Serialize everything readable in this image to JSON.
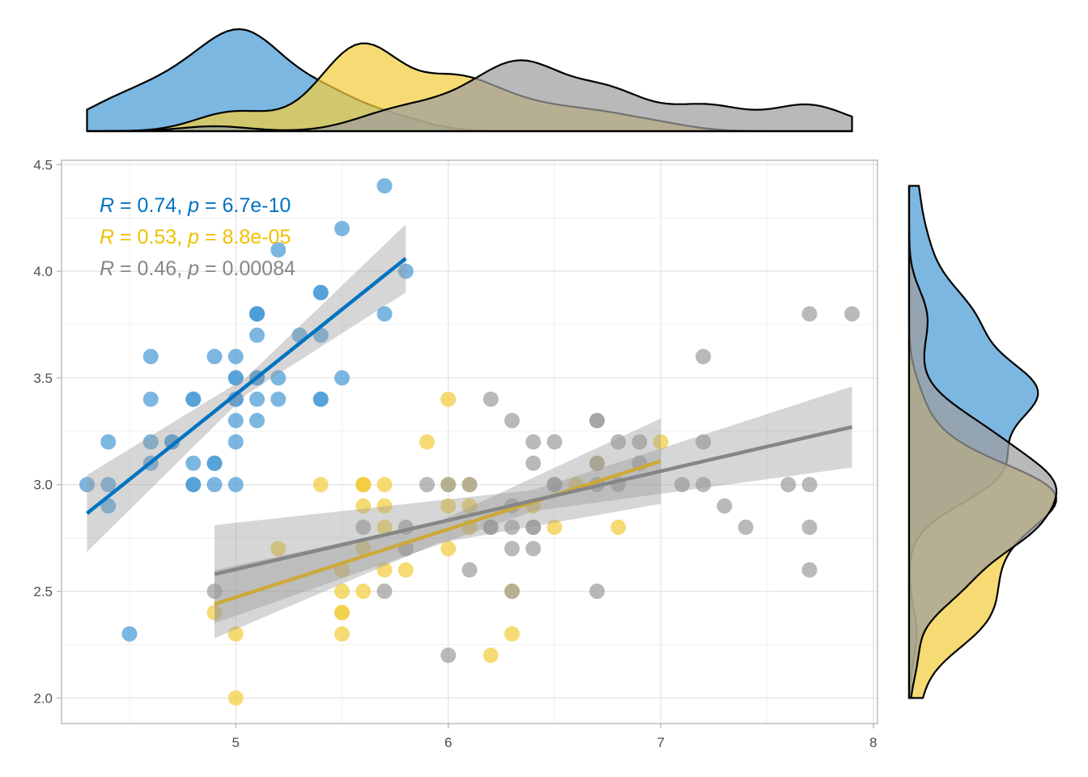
{
  "chart_data": {
    "type": "scatter",
    "title": "",
    "xlabel": "",
    "ylabel": "",
    "xlim": [
      4.18,
      8.02
    ],
    "ylim": [
      1.88,
      4.52
    ],
    "x_ticks": [
      "5",
      "6",
      "7",
      "8"
    ],
    "y_ticks": [
      "2.0",
      "2.5",
      "3.0",
      "3.5",
      "4.0",
      "4.5"
    ],
    "grid": true,
    "legend": "none",
    "marginal_densities": [
      "top",
      "right"
    ],
    "series": [
      {
        "color": "#0073C2",
        "fill": "#4A9BD6",
        "stat": {
          "r": "0.74",
          "p": "6.7e-10"
        },
        "regression": {
          "x0": 4.3,
          "y0": 2.865,
          "x1": 5.8,
          "y1": 4.06,
          "se": [
            0.18,
            0.04,
            0.16
          ]
        },
        "x": [
          4.3,
          4.4,
          4.4,
          4.4,
          4.5,
          4.6,
          4.6,
          4.6,
          4.6,
          4.7,
          4.7,
          4.8,
          4.8,
          4.8,
          4.8,
          4.8,
          4.9,
          4.9,
          4.9,
          4.9,
          5.0,
          5.0,
          5.0,
          5.0,
          5.0,
          5.0,
          5.0,
          5.0,
          5.1,
          5.1,
          5.1,
          5.1,
          5.1,
          5.1,
          5.1,
          5.1,
          5.2,
          5.2,
          5.2,
          5.3,
          5.4,
          5.4,
          5.4,
          5.4,
          5.4,
          5.5,
          5.5,
          5.7,
          5.7,
          5.8
        ],
        "y": [
          3.0,
          2.9,
          3.0,
          3.2,
          2.3,
          3.1,
          3.2,
          3.4,
          3.6,
          3.2,
          3.2,
          3.0,
          3.0,
          3.1,
          3.4,
          3.4,
          3.0,
          3.1,
          3.1,
          3.6,
          3.0,
          3.2,
          3.3,
          3.4,
          3.4,
          3.5,
          3.5,
          3.6,
          3.3,
          3.4,
          3.5,
          3.5,
          3.7,
          3.8,
          3.8,
          3.8,
          3.4,
          3.5,
          4.1,
          3.7,
          3.4,
          3.4,
          3.7,
          3.9,
          3.9,
          3.5,
          4.2,
          3.8,
          4.4,
          4.0
        ]
      },
      {
        "color": "#EFC000",
        "fill": "#F2CD3E",
        "line_color": "#CDA93A",
        "stat": {
          "r": "0.53",
          "p": "8.8e-05"
        },
        "regression": {
          "x0": 4.9,
          "y0": 2.44,
          "x1": 7.0,
          "y1": 3.11,
          "se": [
            0.16,
            0.05,
            0.2
          ]
        },
        "x": [
          4.9,
          5.0,
          5.0,
          5.2,
          5.4,
          5.5,
          5.5,
          5.5,
          5.5,
          5.5,
          5.6,
          5.6,
          5.6,
          5.6,
          5.6,
          5.6,
          5.7,
          5.7,
          5.7,
          5.7,
          5.8,
          5.9,
          6.0,
          6.0,
          6.0,
          6.0,
          6.1,
          6.1,
          6.1,
          6.2,
          6.3,
          6.3,
          6.4,
          6.5,
          6.6,
          6.7,
          6.8,
          7.0
        ],
        "y": [
          2.4,
          2.0,
          2.3,
          2.7,
          3.0,
          2.3,
          2.4,
          2.4,
          2.5,
          2.6,
          2.5,
          2.7,
          2.9,
          3.0,
          3.0,
          3.0,
          2.6,
          2.8,
          2.9,
          3.0,
          2.6,
          3.2,
          2.7,
          2.9,
          3.0,
          3.4,
          2.8,
          2.9,
          3.0,
          2.2,
          2.3,
          2.5,
          2.9,
          2.8,
          3.0,
          3.1,
          2.8,
          3.2
        ]
      },
      {
        "color": "#868686",
        "fill": "#9E9E9E",
        "stat": {
          "r": "0.46",
          "p": "0.00084"
        },
        "regression": {
          "x0": 4.9,
          "y0": 2.58,
          "x1": 7.9,
          "y1": 3.27,
          "se": [
            0.23,
            0.05,
            0.19
          ]
        },
        "x": [
          4.9,
          5.6,
          5.7,
          5.8,
          5.8,
          5.9,
          6.0,
          6.0,
          6.1,
          6.1,
          6.2,
          6.2,
          6.2,
          6.3,
          6.3,
          6.3,
          6.3,
          6.3,
          6.4,
          6.4,
          6.4,
          6.4,
          6.4,
          6.5,
          6.5,
          6.5,
          6.7,
          6.7,
          6.7,
          6.7,
          6.7,
          6.8,
          6.8,
          6.9,
          6.9,
          7.1,
          7.2,
          7.2,
          7.2,
          7.3,
          7.4,
          7.6,
          7.7,
          7.7,
          7.7,
          7.7,
          7.9
        ],
        "y": [
          2.5,
          2.8,
          2.5,
          2.7,
          2.8,
          3.0,
          2.2,
          3.0,
          2.6,
          3.0,
          2.8,
          2.8,
          3.4,
          2.5,
          2.7,
          2.8,
          2.9,
          3.3,
          2.7,
          2.8,
          2.8,
          3.1,
          3.2,
          3.0,
          3.0,
          3.2,
          2.5,
          3.0,
          3.1,
          3.3,
          3.3,
          3.0,
          3.2,
          3.1,
          3.2,
          3.0,
          3.0,
          3.2,
          3.6,
          2.9,
          2.8,
          3.0,
          2.6,
          2.8,
          3.0,
          3.8,
          3.8
        ]
      }
    ]
  }
}
